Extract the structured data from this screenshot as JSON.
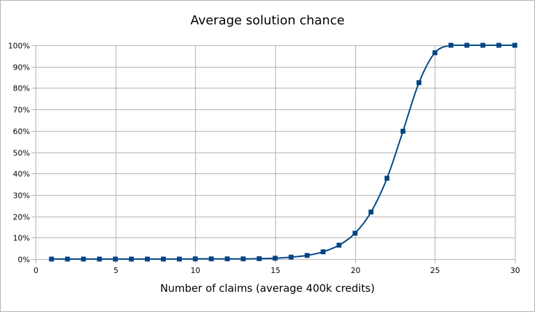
{
  "chart_data": {
    "type": "line",
    "title": "Average solution chance",
    "xlabel": "Number of claims (average 400k credits)",
    "ylabel": "",
    "xlim": [
      0,
      30
    ],
    "ylim": [
      0,
      100
    ],
    "x_ticks": [
      0,
      5,
      10,
      15,
      20,
      25,
      30
    ],
    "x_tick_labels": [
      "0",
      "5",
      "10",
      "15",
      "20",
      "25",
      "30"
    ],
    "y_ticks": [
      0,
      10,
      20,
      30,
      40,
      50,
      60,
      70,
      80,
      90,
      100
    ],
    "y_tick_labels": [
      "0%",
      "10%",
      "20%",
      "30%",
      "40%",
      "50%",
      "60%",
      "70%",
      "80%",
      "90%",
      "100%"
    ],
    "grid": true,
    "legend": "none",
    "smooth": true,
    "series_color": "#004586",
    "grid_color": "#b3b3b3",
    "series": [
      {
        "x": [
          1,
          2,
          3,
          4,
          5,
          6,
          7,
          8,
          9,
          10,
          11,
          12,
          13,
          14,
          15,
          16,
          17,
          18,
          19,
          20,
          21,
          22,
          23,
          24,
          25,
          26,
          27,
          28,
          29,
          30
        ],
        "values": [
          0,
          0,
          0,
          0,
          0,
          0,
          0,
          0,
          0,
          0.1,
          0.1,
          0.1,
          0.1,
          0.2,
          0.4,
          0.9,
          1.7,
          3.4,
          6.5,
          12.1,
          22,
          37.8,
          59.8,
          82.5,
          96.5,
          100,
          100,
          100,
          100,
          100
        ]
      }
    ]
  }
}
